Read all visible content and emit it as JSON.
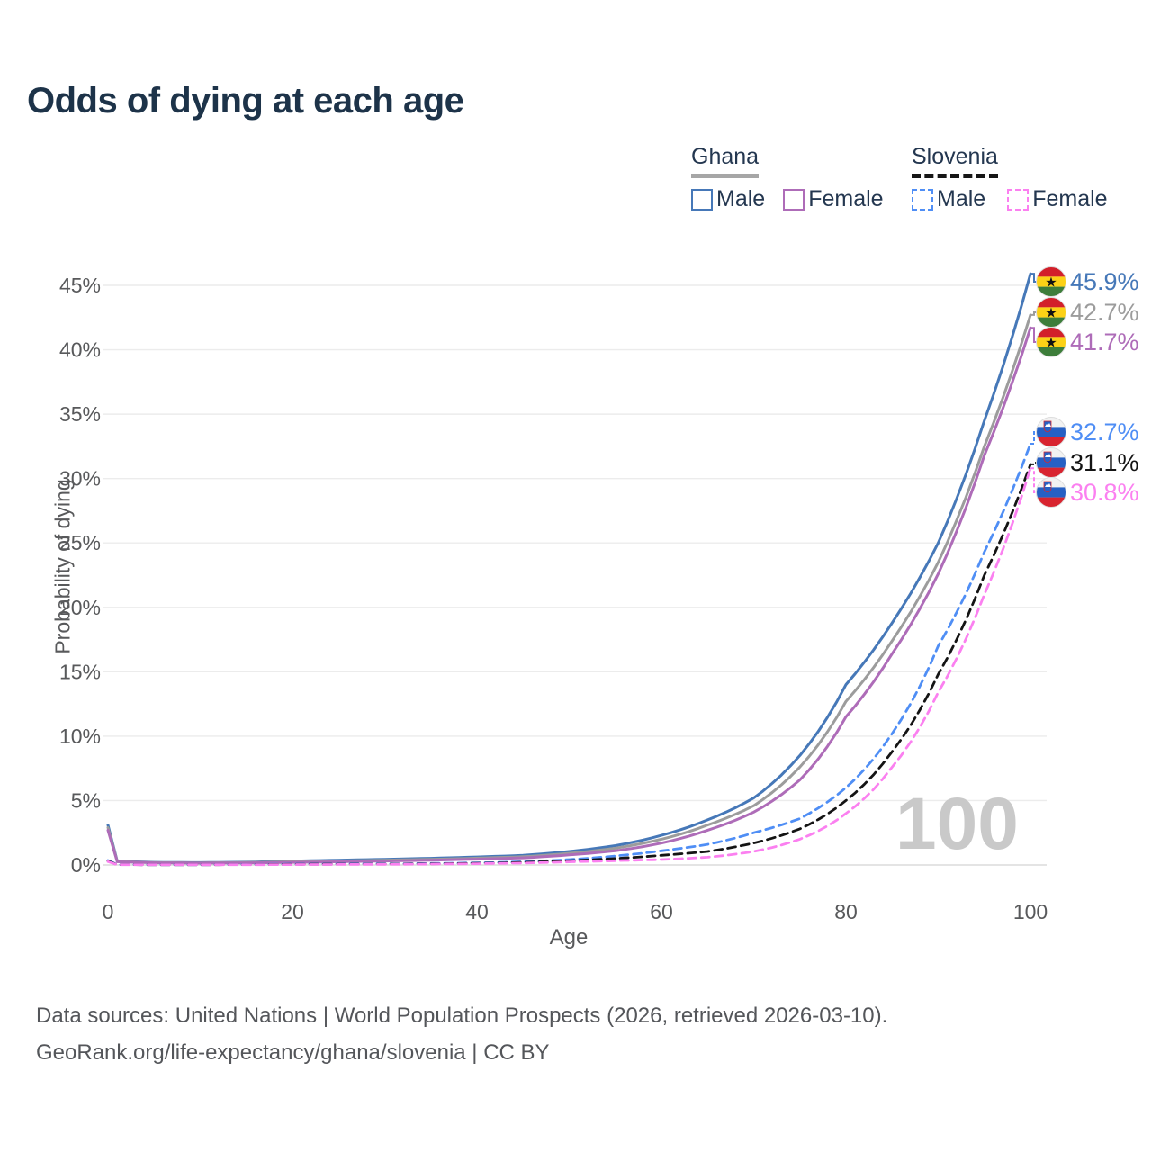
{
  "title": "Odds of dying at each age",
  "legend": {
    "groups": [
      {
        "name": "Ghana",
        "line_style": "solid",
        "underline_color": "#a6a6a6",
        "items": [
          {
            "label": "Male",
            "color": "#4678b8"
          },
          {
            "label": "Female",
            "color": "#ae6cb8"
          }
        ]
      },
      {
        "name": "Slovenia",
        "line_style": "dashed",
        "underline_color": "#161616",
        "items": [
          {
            "label": "Male",
            "color": "#4f8ef5"
          },
          {
            "label": "Female",
            "color": "#fb80f0"
          }
        ]
      }
    ]
  },
  "chart_data": {
    "type": "line",
    "title": "Odds of dying at each age",
    "xlabel": "Age",
    "ylabel": "Probability of dying",
    "xlim": [
      0,
      100
    ],
    "ylim": [
      0,
      46
    ],
    "grid": "horizontal",
    "x_ticks": [
      0,
      20,
      40,
      60,
      80,
      100
    ],
    "y_ticks": [
      0,
      5,
      10,
      15,
      20,
      25,
      30,
      35,
      40,
      45
    ],
    "y_tick_suffix": "%",
    "watermark": "100",
    "ages": [
      0,
      1,
      5,
      10,
      15,
      20,
      25,
      30,
      35,
      40,
      45,
      50,
      55,
      60,
      65,
      70,
      75,
      80,
      85,
      90,
      95,
      100
    ],
    "series": [
      {
        "name": "Ghana Male",
        "country": "Ghana",
        "sex": "Male",
        "flag": "ghana",
        "color": "#4678b8",
        "dashed": false,
        "end_label": "45.9%",
        "end_value": 45.9,
        "values": [
          3.1,
          0.3,
          0.2,
          0.18,
          0.22,
          0.3,
          0.37,
          0.44,
          0.52,
          0.62,
          0.75,
          1.05,
          1.5,
          2.3,
          3.5,
          5.2,
          8.5,
          14.0,
          18.8,
          25.0,
          34.5,
          45.9
        ]
      },
      {
        "name": "Ghana",
        "country": "Ghana",
        "sex": "Both",
        "flag": "ghana",
        "color": "#9c9c9c",
        "dashed": false,
        "end_label": "42.7%",
        "end_value": 42.7,
        "values": [
          2.9,
          0.27,
          0.18,
          0.16,
          0.19,
          0.25,
          0.31,
          0.37,
          0.44,
          0.53,
          0.64,
          0.9,
          1.3,
          2.0,
          3.1,
          4.6,
          7.6,
          12.7,
          17.4,
          23.5,
          32.5,
          42.7
        ]
      },
      {
        "name": "Ghana Female",
        "country": "Ghana",
        "sex": "Female",
        "flag": "ghana",
        "color": "#ae6cb8",
        "dashed": false,
        "end_label": "41.7%",
        "end_value": 41.7,
        "values": [
          2.7,
          0.25,
          0.17,
          0.14,
          0.16,
          0.2,
          0.25,
          0.31,
          0.37,
          0.45,
          0.55,
          0.78,
          1.1,
          1.7,
          2.7,
          4.1,
          6.6,
          11.5,
          16.4,
          22.6,
          31.8,
          41.7
        ]
      },
      {
        "name": "Slovenia Male",
        "country": "Slovenia",
        "sex": "Male",
        "flag": "slovenia",
        "color": "#4f8ef5",
        "dashed": true,
        "end_label": "32.7%",
        "end_value": 32.7,
        "values": [
          0.35,
          0.03,
          0.02,
          0.02,
          0.04,
          0.07,
          0.08,
          0.09,
          0.12,
          0.16,
          0.25,
          0.42,
          0.7,
          1.1,
          1.6,
          2.5,
          3.6,
          6.0,
          10.2,
          17.0,
          24.3,
          32.7
        ]
      },
      {
        "name": "Slovenia",
        "country": "Slovenia",
        "sex": "Both",
        "flag": "slovenia",
        "color": "#141414",
        "dashed": true,
        "end_label": "31.1%",
        "end_value": 31.1,
        "values": [
          0.3,
          0.03,
          0.02,
          0.02,
          0.03,
          0.05,
          0.06,
          0.07,
          0.09,
          0.13,
          0.2,
          0.33,
          0.5,
          0.75,
          1.05,
          1.7,
          2.8,
          5.0,
          8.8,
          14.8,
          22.5,
          31.1
        ]
      },
      {
        "name": "Slovenia Female",
        "country": "Slovenia",
        "sex": "Female",
        "flag": "slovenia",
        "color": "#fb80f0",
        "dashed": true,
        "end_label": "30.8%",
        "end_value": 30.8,
        "values": [
          0.26,
          0.02,
          0.02,
          0.02,
          0.02,
          0.03,
          0.04,
          0.05,
          0.07,
          0.1,
          0.15,
          0.24,
          0.33,
          0.42,
          0.6,
          1.05,
          2.0,
          4.0,
          7.6,
          13.4,
          21.0,
          30.8
        ]
      }
    ],
    "flag_colors": {
      "ghana": {
        "red": "#d21f2a",
        "gold": "#fcd116",
        "green": "#3d7d3a",
        "star": "#111111"
      },
      "slovenia": {
        "white": "#f2f2f2",
        "blue": "#2660c4",
        "red": "#d8242f"
      }
    }
  },
  "footer": {
    "line1": "Data sources: United Nations | World Population Prospects (2026, retrieved 2026-03-10).",
    "line2": "GeoRank.org/life-expectancy/ghana/slovenia | CC BY"
  }
}
